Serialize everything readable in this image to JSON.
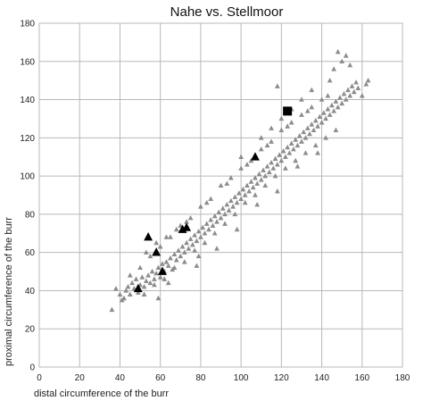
{
  "chart_data": {
    "type": "scatter",
    "title": "Nahe vs. Stellmoor",
    "xlabel": "distal circumference of the burr",
    "ylabel": "proximal circumference of the burr",
    "xlim": [
      0,
      180
    ],
    "ylim": [
      0,
      180
    ],
    "x_ticks": [
      "0",
      "20",
      "40",
      "60",
      "80",
      "100",
      "120",
      "140",
      "160",
      "180"
    ],
    "y_ticks": [
      "0",
      "20",
      "40",
      "60",
      "80",
      "100",
      "120",
      "140",
      "160",
      "180"
    ],
    "grid": true,
    "colors": {
      "grey": "#8c8c8c",
      "black": "#000000",
      "grid": "#b8b8b8"
    },
    "series": [
      {
        "marker": "grey-triangle",
        "points": [
          [
            36,
            30
          ],
          [
            38,
            41
          ],
          [
            40,
            38
          ],
          [
            41,
            35
          ],
          [
            42,
            36
          ],
          [
            43,
            40
          ],
          [
            44,
            42
          ],
          [
            45,
            38
          ],
          [
            46,
            44
          ],
          [
            47,
            41
          ],
          [
            48,
            46
          ],
          [
            49,
            39
          ],
          [
            50,
            43
          ],
          [
            51,
            47
          ],
          [
            52,
            42
          ],
          [
            53,
            45
          ],
          [
            54,
            48
          ],
          [
            55,
            44
          ],
          [
            56,
            50
          ],
          [
            57,
            46
          ],
          [
            58,
            49
          ],
          [
            59,
            52
          ],
          [
            60,
            47
          ],
          [
            61,
            54
          ],
          [
            62,
            50
          ],
          [
            63,
            55
          ],
          [
            64,
            53
          ],
          [
            65,
            57
          ],
          [
            66,
            51
          ],
          [
            67,
            59
          ],
          [
            68,
            56
          ],
          [
            69,
            61
          ],
          [
            70,
            58
          ],
          [
            71,
            63
          ],
          [
            72,
            60
          ],
          [
            73,
            65
          ],
          [
            74,
            62
          ],
          [
            75,
            67
          ],
          [
            76,
            64
          ],
          [
            77,
            69
          ],
          [
            78,
            66
          ],
          [
            79,
            71
          ],
          [
            80,
            68
          ],
          [
            81,
            73
          ],
          [
            82,
            70
          ],
          [
            83,
            75
          ],
          [
            84,
            72
          ],
          [
            85,
            77
          ],
          [
            86,
            74
          ],
          [
            87,
            79
          ],
          [
            88,
            76
          ],
          [
            89,
            81
          ],
          [
            90,
            78
          ],
          [
            91,
            83
          ],
          [
            92,
            80
          ],
          [
            93,
            85
          ],
          [
            94,
            82
          ],
          [
            95,
            87
          ],
          [
            96,
            84
          ],
          [
            97,
            89
          ],
          [
            98,
            86
          ],
          [
            99,
            91
          ],
          [
            100,
            88
          ],
          [
            101,
            93
          ],
          [
            102,
            90
          ],
          [
            103,
            95
          ],
          [
            104,
            92
          ],
          [
            105,
            97
          ],
          [
            106,
            94
          ],
          [
            107,
            99
          ],
          [
            108,
            96
          ],
          [
            109,
            101
          ],
          [
            110,
            98
          ],
          [
            111,
            103
          ],
          [
            112,
            100
          ],
          [
            113,
            105
          ],
          [
            114,
            102
          ],
          [
            115,
            107
          ],
          [
            116,
            104
          ],
          [
            117,
            109
          ],
          [
            118,
            106
          ],
          [
            119,
            111
          ],
          [
            120,
            108
          ],
          [
            121,
            113
          ],
          [
            122,
            110
          ],
          [
            123,
            115
          ],
          [
            124,
            112
          ],
          [
            125,
            117
          ],
          [
            126,
            114
          ],
          [
            127,
            119
          ],
          [
            128,
            116
          ],
          [
            129,
            121
          ],
          [
            130,
            118
          ],
          [
            131,
            123
          ],
          [
            132,
            120
          ],
          [
            133,
            125
          ],
          [
            134,
            122
          ],
          [
            135,
            127
          ],
          [
            136,
            124
          ],
          [
            137,
            129
          ],
          [
            138,
            126
          ],
          [
            139,
            131
          ],
          [
            140,
            128
          ],
          [
            141,
            133
          ],
          [
            142,
            130
          ],
          [
            143,
            135
          ],
          [
            144,
            132
          ],
          [
            145,
            137
          ],
          [
            146,
            134
          ],
          [
            147,
            139
          ],
          [
            148,
            136
          ],
          [
            149,
            141
          ],
          [
            150,
            138
          ],
          [
            151,
            143
          ],
          [
            152,
            140
          ],
          [
            153,
            145
          ],
          [
            154,
            142
          ],
          [
            155,
            147
          ],
          [
            156,
            144
          ],
          [
            157,
            149
          ],
          [
            158,
            146
          ],
          [
            160,
            142
          ],
          [
            162,
            148
          ],
          [
            163,
            150
          ],
          [
            148,
            165
          ],
          [
            150,
            160
          ],
          [
            152,
            163
          ],
          [
            146,
            156
          ],
          [
            154,
            158
          ],
          [
            144,
            150
          ],
          [
            45,
            48
          ],
          [
            50,
            52
          ],
          [
            55,
            58
          ],
          [
            60,
            63
          ],
          [
            65,
            68
          ],
          [
            70,
            74
          ],
          [
            75,
            78
          ],
          [
            80,
            84
          ],
          [
            85,
            88
          ],
          [
            90,
            95
          ],
          [
            95,
            99
          ],
          [
            100,
            104
          ],
          [
            105,
            108
          ],
          [
            110,
            114
          ],
          [
            115,
            118
          ],
          [
            120,
            124
          ],
          [
            125,
            128
          ],
          [
            130,
            132
          ],
          [
            135,
            136
          ],
          [
            140,
            140
          ],
          [
            52,
            38
          ],
          [
            57,
            43
          ],
          [
            62,
            46
          ],
          [
            67,
            52
          ],
          [
            72,
            55
          ],
          [
            77,
            61
          ],
          [
            82,
            65
          ],
          [
            87,
            70
          ],
          [
            92,
            75
          ],
          [
            97,
            80
          ],
          [
            102,
            86
          ],
          [
            107,
            90
          ],
          [
            112,
            95
          ],
          [
            117,
            100
          ],
          [
            122,
            104
          ],
          [
            127,
            108
          ],
          [
            132,
            112
          ],
          [
            137,
            116
          ],
          [
            142,
            120
          ],
          [
            147,
            124
          ],
          [
            78,
            53
          ],
          [
            79,
            58
          ],
          [
            64,
            44
          ],
          [
            59,
            36
          ],
          [
            88,
            62
          ],
          [
            98,
            72
          ],
          [
            108,
            85
          ],
          [
            118,
            92
          ],
          [
            128,
            105
          ],
          [
            138,
            112
          ],
          [
            53,
            60
          ],
          [
            58,
            65
          ],
          [
            63,
            68
          ],
          [
            68,
            72
          ],
          [
            73,
            76
          ],
          [
            83,
            86
          ],
          [
            93,
            96
          ],
          [
            103,
            106
          ],
          [
            113,
            116
          ],
          [
            123,
            126
          ],
          [
            133,
            134
          ],
          [
            143,
            142
          ],
          [
            100,
            110
          ],
          [
            110,
            120
          ],
          [
            115,
            125
          ],
          [
            120,
            130
          ],
          [
            125,
            135
          ],
          [
            130,
            140
          ],
          [
            135,
            145
          ],
          [
            118,
            147
          ]
        ]
      },
      {
        "marker": "black-triangle",
        "points": [
          [
            49,
            41
          ],
          [
            54,
            68
          ],
          [
            58,
            60
          ],
          [
            61,
            50
          ],
          [
            71,
            72
          ],
          [
            73,
            73
          ],
          [
            107,
            110
          ]
        ]
      },
      {
        "marker": "black-square",
        "points": [
          [
            123,
            134
          ]
        ]
      }
    ]
  }
}
